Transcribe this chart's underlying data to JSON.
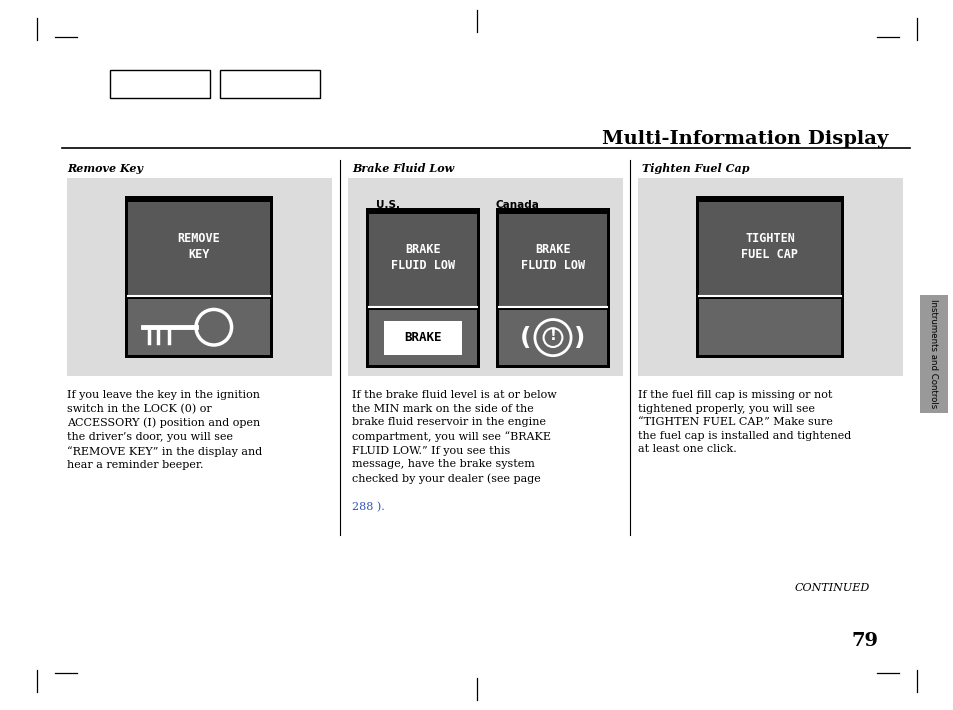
{
  "page_bg": "#ffffff",
  "title": "Multi-Information Display",
  "page_number": "79",
  "continued_text": "CONTINUED",
  "section_label": "Instruments and Controls",
  "col1_label": "Remove Key",
  "col2_label": "Brake Fluid Low",
  "col3_label": "Tighten Fuel Cap",
  "panel_light_bg": "#dcdcdc",
  "display_top_bg": "#595959",
  "display_bot_bg": "#686868",
  "white": "#ffffff",
  "black": "#000000",
  "link_color": "#3355bb",
  "col1_body": "If you leave the key in the ignition\nswitch in the LOCK (0) or\nACCESSORY (I) position and open\nthe driver’s door, you will see\n“REMOVE KEY” in the display and\nhear a reminder beeper.",
  "col2_body_main": "If the brake fluid level is at or below\nthe MIN mark on the side of the\nbrake fluid reservoir in the engine\ncompartment, you will see “BRAKE\nFLUID LOW.” If you see this\nmessage, have the brake system\nchecked by your dealer (see page",
  "col2_body_link": "288 ).",
  "col3_body": "If the fuel fill cap is missing or not\ntightened properly, you will see\n“TIGHTEN FUEL CAP.” Make sure\nthe fuel cap is installed and tightened\nat least one click.",
  "tab_color": "#999999"
}
